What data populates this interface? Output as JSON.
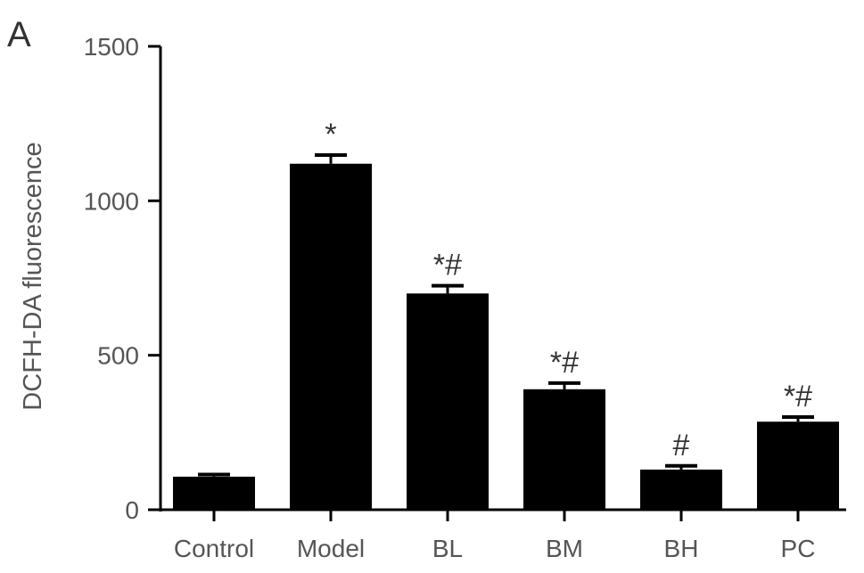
{
  "panel_label": "A",
  "chart_data": {
    "type": "bar",
    "categories": [
      "Control",
      "Model",
      "BL",
      "BM",
      "BH",
      "PC"
    ],
    "values": [
      107,
      1120,
      700,
      390,
      130,
      285
    ],
    "errors": [
      7,
      28,
      25,
      20,
      12,
      15
    ],
    "annotations": [
      "",
      "*",
      "*#",
      "*#",
      "#",
      "*#"
    ],
    "ylabel": "DCFH-DA fluorescence",
    "xlabel": "",
    "ylim": [
      0,
      1500
    ],
    "yticks": [
      0,
      500,
      1000,
      1500
    ],
    "bar_color": "#000000",
    "grid": false
  }
}
